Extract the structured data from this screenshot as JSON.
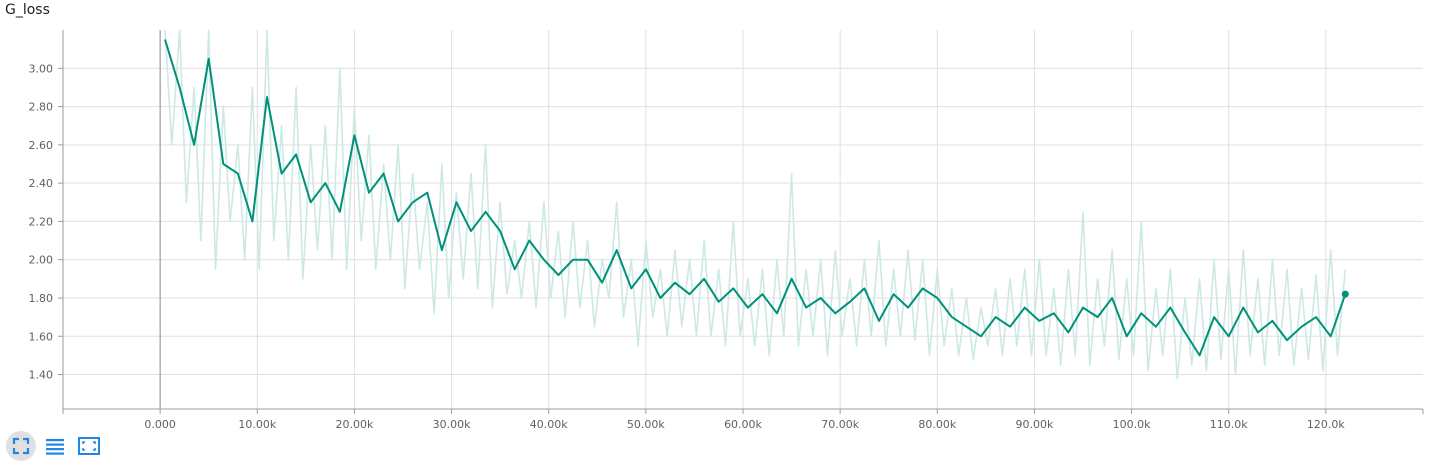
{
  "title": "G_loss",
  "colors": {
    "smoothed": "#00917a",
    "raw": "#cde9e4",
    "grid": "#e0e0e0",
    "axis": "#9e9e9e",
    "zero_line": "#9e9e9e",
    "icon": "#1e88e5"
  },
  "toolbar": {
    "buttons": [
      {
        "name": "fit-domain-button",
        "icon": "expand-icon",
        "active": true
      },
      {
        "name": "toggle-log-button",
        "icon": "list-lines-icon",
        "active": false
      },
      {
        "name": "reset-zoom-button",
        "icon": "fit-screen-icon",
        "active": false
      }
    ]
  },
  "chart_data": {
    "type": "line",
    "title": "G_loss",
    "xlabel": "",
    "ylabel": "",
    "xlim": [
      -10000,
      130000
    ],
    "ylim": [
      1.22,
      3.2
    ],
    "x_ticks": [
      0,
      10000,
      20000,
      30000,
      40000,
      50000,
      60000,
      70000,
      80000,
      90000,
      100000,
      110000,
      120000
    ],
    "x_tick_labels": [
      "0.000",
      "10.00k",
      "20.00k",
      "30.00k",
      "40.00k",
      "50.00k",
      "60.00k",
      "70.00k",
      "80.00k",
      "90.00k",
      "100.0k",
      "110.0k",
      "120.0k"
    ],
    "y_ticks": [
      1.4,
      1.6,
      1.8,
      2.0,
      2.2,
      2.4,
      2.6,
      2.8,
      3.0
    ],
    "y_tick_labels": [
      "1.40",
      "1.60",
      "1.80",
      "2.00",
      "2.20",
      "2.40",
      "2.60",
      "2.80",
      "3.00"
    ],
    "grid": true,
    "legend": "none",
    "series": [
      {
        "role": "smoothed",
        "x": [
          500,
          2000,
          3500,
          5000,
          6500,
          8000,
          9500,
          11000,
          12500,
          14000,
          15500,
          17000,
          18500,
          20000,
          21500,
          23000,
          24500,
          26000,
          27500,
          29000,
          30500,
          32000,
          33500,
          35000,
          36500,
          38000,
          39500,
          41000,
          42500,
          44000,
          45500,
          47000,
          48500,
          50000,
          51500,
          53000,
          54500,
          56000,
          57500,
          59000,
          60500,
          62000,
          63500,
          65000,
          66500,
          68000,
          69500,
          71000,
          72500,
          74000,
          75500,
          77000,
          78500,
          80000,
          81500,
          83000,
          84500,
          86000,
          87500,
          89000,
          90500,
          92000,
          93500,
          95000,
          96500,
          98000,
          99500,
          101000,
          102500,
          104000,
          105500,
          107000,
          108500,
          110000,
          111500,
          113000,
          114500,
          116000,
          117500,
          119000,
          120500,
          122000
        ],
        "y": [
          3.15,
          2.9,
          2.6,
          3.05,
          2.5,
          2.45,
          2.2,
          2.85,
          2.45,
          2.55,
          2.3,
          2.4,
          2.25,
          2.65,
          2.35,
          2.45,
          2.2,
          2.3,
          2.35,
          2.05,
          2.3,
          2.15,
          2.25,
          2.15,
          1.95,
          2.1,
          2.0,
          1.92,
          2.0,
          2.0,
          1.88,
          2.05,
          1.85,
          1.95,
          1.8,
          1.88,
          1.82,
          1.9,
          1.78,
          1.85,
          1.75,
          1.82,
          1.72,
          1.9,
          1.75,
          1.8,
          1.72,
          1.78,
          1.85,
          1.68,
          1.82,
          1.75,
          1.85,
          1.8,
          1.7,
          1.65,
          1.6,
          1.7,
          1.65,
          1.75,
          1.68,
          1.72,
          1.62,
          1.75,
          1.7,
          1.8,
          1.6,
          1.72,
          1.65,
          1.75,
          1.62,
          1.5,
          1.7,
          1.6,
          1.75,
          1.62,
          1.68,
          1.58,
          1.65,
          1.7,
          1.6,
          1.82
        ]
      },
      {
        "role": "raw",
        "x": [
          500,
          1200,
          2000,
          2700,
          3500,
          4200,
          5000,
          5700,
          6500,
          7200,
          8000,
          8700,
          9500,
          10200,
          11000,
          11700,
          12500,
          13200,
          14000,
          14700,
          15500,
          16200,
          17000,
          17700,
          18500,
          19200,
          20000,
          20700,
          21500,
          22200,
          23000,
          23700,
          24500,
          25200,
          26000,
          26700,
          27500,
          28200,
          29000,
          29700,
          30500,
          31200,
          32000,
          32700,
          33500,
          34200,
          35000,
          35700,
          36500,
          37200,
          38000,
          38700,
          39500,
          40200,
          41000,
          41700,
          42500,
          43200,
          44000,
          44700,
          45500,
          46200,
          47000,
          47700,
          48500,
          49200,
          50000,
          50700,
          51500,
          52200,
          53000,
          53700,
          54500,
          55200,
          56000,
          56700,
          57500,
          58200,
          59000,
          59700,
          60500,
          61200,
          62000,
          62700,
          63500,
          64200,
          65000,
          65700,
          66500,
          67200,
          68000,
          68700,
          69500,
          70200,
          71000,
          71700,
          72500,
          73200,
          74000,
          74700,
          75500,
          76200,
          77000,
          77700,
          78500,
          79200,
          80000,
          80700,
          81500,
          82200,
          83000,
          83700,
          84500,
          85200,
          86000,
          86700,
          87500,
          88200,
          89000,
          89700,
          90500,
          91200,
          92000,
          92700,
          93500,
          94200,
          95000,
          95700,
          96500,
          97200,
          98000,
          98700,
          99500,
          100200,
          101000,
          101700,
          102500,
          103200,
          104000,
          104700,
          105500,
          106200,
          107000,
          107700,
          108500,
          109200,
          110000,
          110700,
          111500,
          112200,
          113000,
          113700,
          114500,
          115200,
          116000,
          116700,
          117500,
          118200,
          119000,
          119700,
          120500,
          121200,
          122000
        ],
        "y": [
          3.2,
          2.6,
          3.2,
          2.3,
          2.9,
          2.1,
          3.2,
          1.95,
          2.8,
          2.2,
          2.6,
          2.0,
          2.9,
          1.95,
          3.2,
          2.1,
          2.7,
          2.0,
          2.9,
          1.9,
          2.6,
          2.05,
          2.7,
          2.0,
          3.0,
          1.95,
          2.8,
          2.1,
          2.65,
          1.95,
          2.5,
          2.0,
          2.6,
          1.85,
          2.45,
          1.95,
          2.3,
          1.72,
          2.5,
          1.8,
          2.35,
          1.9,
          2.45,
          1.85,
          2.6,
          1.75,
          2.3,
          1.82,
          2.1,
          1.8,
          2.2,
          1.75,
          2.3,
          1.8,
          2.15,
          1.7,
          2.2,
          1.75,
          2.1,
          1.65,
          2.0,
          1.8,
          2.3,
          1.7,
          2.0,
          1.55,
          2.1,
          1.7,
          1.95,
          1.6,
          2.05,
          1.65,
          2.0,
          1.6,
          2.1,
          1.6,
          1.95,
          1.55,
          2.2,
          1.6,
          1.9,
          1.55,
          1.95,
          1.5,
          2.0,
          1.6,
          2.45,
          1.55,
          1.95,
          1.6,
          2.0,
          1.5,
          2.05,
          1.6,
          1.9,
          1.55,
          2.0,
          1.6,
          2.1,
          1.55,
          1.95,
          1.6,
          2.05,
          1.58,
          2.0,
          1.5,
          1.95,
          1.55,
          1.85,
          1.5,
          1.8,
          1.48,
          1.75,
          1.55,
          1.85,
          1.5,
          1.9,
          1.55,
          1.95,
          1.5,
          2.0,
          1.5,
          1.85,
          1.45,
          1.95,
          1.5,
          2.25,
          1.45,
          1.9,
          1.55,
          2.05,
          1.48,
          1.9,
          1.5,
          2.2,
          1.42,
          1.85,
          1.5,
          1.95,
          1.38,
          1.8,
          1.45,
          1.9,
          1.42,
          2.0,
          1.48,
          1.95,
          1.4,
          2.05,
          1.5,
          1.9,
          1.45,
          2.0,
          1.5,
          1.95,
          1.45,
          1.85,
          1.48,
          1.92,
          1.42,
          2.05,
          1.5,
          1.95
        ]
      }
    ],
    "last_point": {
      "x": 122000,
      "y": 1.82
    }
  }
}
